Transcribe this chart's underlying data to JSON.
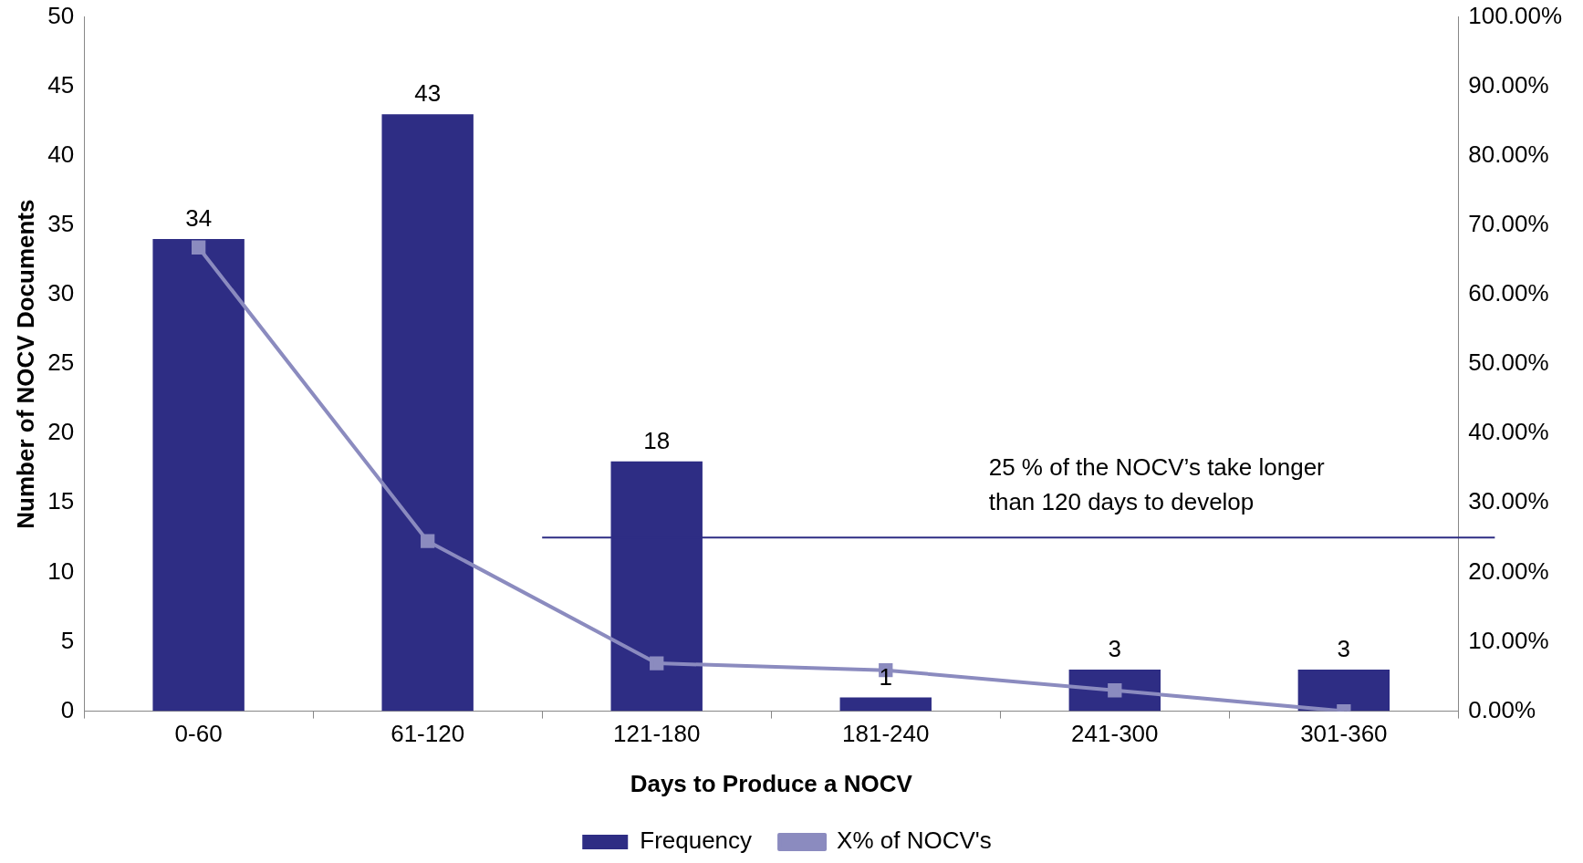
{
  "chart_data": {
    "type": "bar",
    "xlabel": "Days to Produce a NOCV",
    "ylabel": "Number of NOCV Documents",
    "categories": [
      "0-60",
      "61-120",
      "121-180",
      "181-240",
      "241-300",
      "301-360"
    ],
    "series": [
      {
        "name": "Frequency",
        "color": "#2e2d84",
        "values": [
          34,
          43,
          18,
          1,
          3,
          3
        ],
        "value_labels": [
          "34",
          "43",
          "18",
          "1",
          "3",
          "3"
        ]
      },
      {
        "name": "X% of NOCV's",
        "type": "line",
        "axis": "y2",
        "color": "#8b8bbf",
        "marker": "square",
        "values": [
          66.8,
          24.5,
          6.9,
          5.9,
          3.0,
          0
        ]
      }
    ],
    "ylim": [
      0,
      50
    ],
    "yticks": [
      0,
      5,
      10,
      15,
      20,
      25,
      30,
      35,
      40,
      45,
      50
    ],
    "y2lim": [
      0,
      100
    ],
    "y2ticks": [
      {
        "value": 0,
        "label": "0.00%"
      },
      {
        "value": 10,
        "label": "10.00%"
      },
      {
        "value": 20,
        "label": "20.00%"
      },
      {
        "value": 30,
        "label": "30.00%"
      },
      {
        "value": 40,
        "label": "40.00%"
      },
      {
        "value": 50,
        "label": "50.00%"
      },
      {
        "value": 60,
        "label": "60.00%"
      },
      {
        "value": 70,
        "label": "70.00%"
      },
      {
        "value": 80,
        "label": "80.00%"
      },
      {
        "value": 90,
        "label": "90.00%"
      },
      {
        "value": 100,
        "label": "100.00%"
      }
    ],
    "ref_lines": [
      {
        "axis": "y2",
        "value": 25,
        "color": "#2e2d84",
        "label": "25 % of the NOCV’s take longer\nthan 120 days to develop"
      }
    ],
    "legend": "bottom",
    "grid": false
  }
}
